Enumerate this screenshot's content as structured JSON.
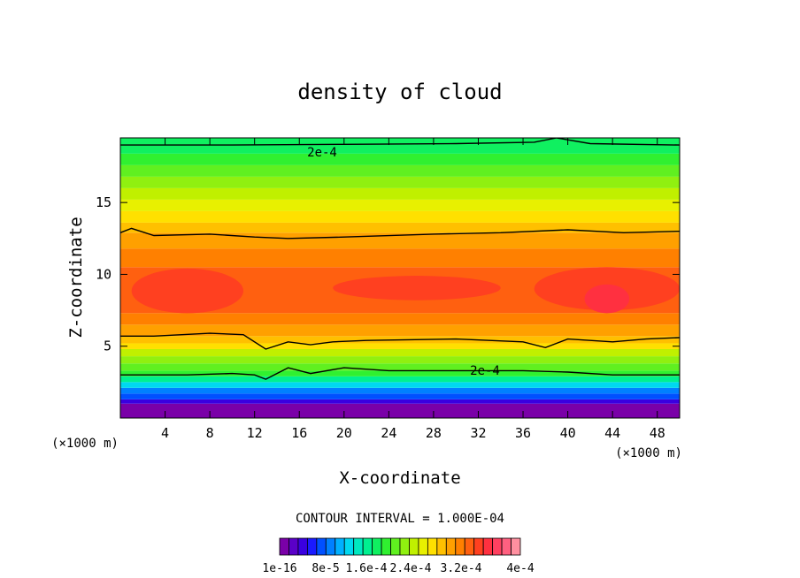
{
  "chart_data": {
    "type": "contour",
    "title": "density of cloud",
    "xlabel": "X-coordinate",
    "ylabel": "Z-coordinate",
    "x_unit": "(×1000 m)",
    "x_unit_right": "(×1000 m)",
    "xlim": [
      0,
      50
    ],
    "ylim": [
      0,
      19.5
    ],
    "x_ticks": [
      4,
      8,
      12,
      16,
      20,
      24,
      28,
      32,
      36,
      40,
      44,
      48
    ],
    "x_tick_labels": [
      "4",
      "8",
      "12",
      "16",
      "20",
      "24",
      "28",
      "32",
      "36",
      "40",
      "44",
      "48"
    ],
    "y_ticks": [
      5,
      10,
      15
    ],
    "y_tick_labels": [
      "5",
      "10",
      "15"
    ],
    "contour_interval_text": "CONTOUR INTERVAL = 1.000E-04",
    "contour_labels": [
      "2e-4",
      "2e-4"
    ],
    "colorbar_labels": [
      "1e-16",
      "8e-5",
      "1.6e-4",
      "2.4e-4",
      "3.2e-4",
      "4e-4"
    ],
    "colorbar_colors": [
      "#7a00a8",
      "#5a00c8",
      "#3a00e0",
      "#1a1aff",
      "#0050ff",
      "#0080ff",
      "#00b0ff",
      "#00d8f0",
      "#00e8c0",
      "#00f090",
      "#10f060",
      "#30f030",
      "#60f020",
      "#90f010",
      "#c0f000",
      "#e8f000",
      "#ffe000",
      "#ffc000",
      "#ffa000",
      "#ff8000",
      "#ff6010",
      "#ff4020",
      "#ff3040",
      "#ff4060",
      "#ff6080",
      "#ff90a0"
    ],
    "bands": [
      {
        "z0": 0.0,
        "z1": 1.0,
        "color": "#7a00a8"
      },
      {
        "z0": 1.0,
        "z1": 1.3,
        "color": "#3a00e0"
      },
      {
        "z0": 1.3,
        "z1": 1.7,
        "color": "#0050ff"
      },
      {
        "z0": 1.7,
        "z1": 2.1,
        "color": "#0080ff"
      },
      {
        "z0": 2.1,
        "z1": 2.5,
        "color": "#00d8f0"
      },
      {
        "z0": 2.5,
        "z1": 2.9,
        "color": "#00f090"
      },
      {
        "z0": 2.9,
        "z1": 3.3,
        "color": "#30f030"
      },
      {
        "z0": 3.3,
        "z1": 3.8,
        "color": "#60f020"
      },
      {
        "z0": 3.8,
        "z1": 4.3,
        "color": "#90f010"
      },
      {
        "z0": 4.3,
        "z1": 4.8,
        "color": "#c0f000"
      },
      {
        "z0": 4.8,
        "z1": 5.2,
        "color": "#ffe000"
      },
      {
        "z0": 5.2,
        "z1": 5.7,
        "color": "#ffc000"
      },
      {
        "z0": 5.7,
        "z1": 6.5,
        "color": "#ffa000"
      },
      {
        "z0": 6.5,
        "z1": 7.3,
        "color": "#ff8000"
      },
      {
        "z0": 7.3,
        "z1": 10.5,
        "color": "#ff6010"
      },
      {
        "z0": 10.5,
        "z1": 11.8,
        "color": "#ff8000"
      },
      {
        "z0": 11.8,
        "z1": 12.9,
        "color": "#ffa000"
      },
      {
        "z0": 12.9,
        "z1": 13.6,
        "color": "#ffc000"
      },
      {
        "z0": 13.6,
        "z1": 14.4,
        "color": "#ffe000"
      },
      {
        "z0": 14.4,
        "z1": 15.2,
        "color": "#e8f000"
      },
      {
        "z0": 15.2,
        "z1": 16.0,
        "color": "#c0f000"
      },
      {
        "z0": 16.0,
        "z1": 16.8,
        "color": "#90f010"
      },
      {
        "z0": 16.8,
        "z1": 17.6,
        "color": "#60f020"
      },
      {
        "z0": 17.6,
        "z1": 18.4,
        "color": "#30f030"
      },
      {
        "z0": 18.4,
        "z1": 19.5,
        "color": "#10f060"
      }
    ],
    "cores": [
      {
        "x0": 1,
        "x1": 11,
        "z0": 7.3,
        "z1": 10.4,
        "color": "#ff4020"
      },
      {
        "x0": 19,
        "x1": 34,
        "z0": 8.2,
        "z1": 9.9,
        "color": "#ff4020"
      },
      {
        "x0": 37,
        "x1": 50,
        "z0": 7.5,
        "z1": 10.5,
        "color": "#ff4020"
      },
      {
        "x0": 41.5,
        "x1": 45.5,
        "z0": 7.3,
        "z1": 9.3,
        "color": "#ff3040"
      }
    ],
    "contour_lines": [
      {
        "points": [
          [
            0,
            19.0
          ],
          [
            10,
            19.0
          ],
          [
            20,
            19.05
          ],
          [
            30,
            19.1
          ],
          [
            37,
            19.2
          ],
          [
            39,
            19.5
          ],
          [
            42,
            19.1
          ],
          [
            50,
            19.0
          ]
        ]
      },
      {
        "points": [
          [
            0,
            12.9
          ],
          [
            1,
            13.2
          ],
          [
            3,
            12.7
          ],
          [
            8,
            12.8
          ],
          [
            12,
            12.6
          ],
          [
            15,
            12.5
          ],
          [
            20,
            12.6
          ],
          [
            28,
            12.8
          ],
          [
            34,
            12.9
          ],
          [
            40,
            13.1
          ],
          [
            45,
            12.9
          ],
          [
            50,
            13.0
          ]
        ]
      },
      {
        "points": [
          [
            0,
            5.7
          ],
          [
            3,
            5.7
          ],
          [
            8,
            5.9
          ],
          [
            11,
            5.8
          ],
          [
            13,
            4.8
          ],
          [
            15,
            5.3
          ],
          [
            17,
            5.1
          ],
          [
            19,
            5.3
          ],
          [
            22,
            5.4
          ],
          [
            30,
            5.5
          ],
          [
            36,
            5.3
          ],
          [
            38,
            4.9
          ],
          [
            40,
            5.5
          ],
          [
            44,
            5.3
          ],
          [
            47,
            5.5
          ],
          [
            50,
            5.6
          ]
        ]
      },
      {
        "points": [
          [
            0,
            3.0
          ],
          [
            6,
            3.0
          ],
          [
            10,
            3.1
          ],
          [
            12,
            3.0
          ],
          [
            13,
            2.7
          ],
          [
            15,
            3.5
          ],
          [
            17,
            3.1
          ],
          [
            20,
            3.5
          ],
          [
            24,
            3.3
          ],
          [
            30,
            3.3
          ],
          [
            36,
            3.3
          ],
          [
            40,
            3.2
          ],
          [
            44,
            3.0
          ],
          [
            50,
            3.0
          ]
        ]
      }
    ]
  }
}
